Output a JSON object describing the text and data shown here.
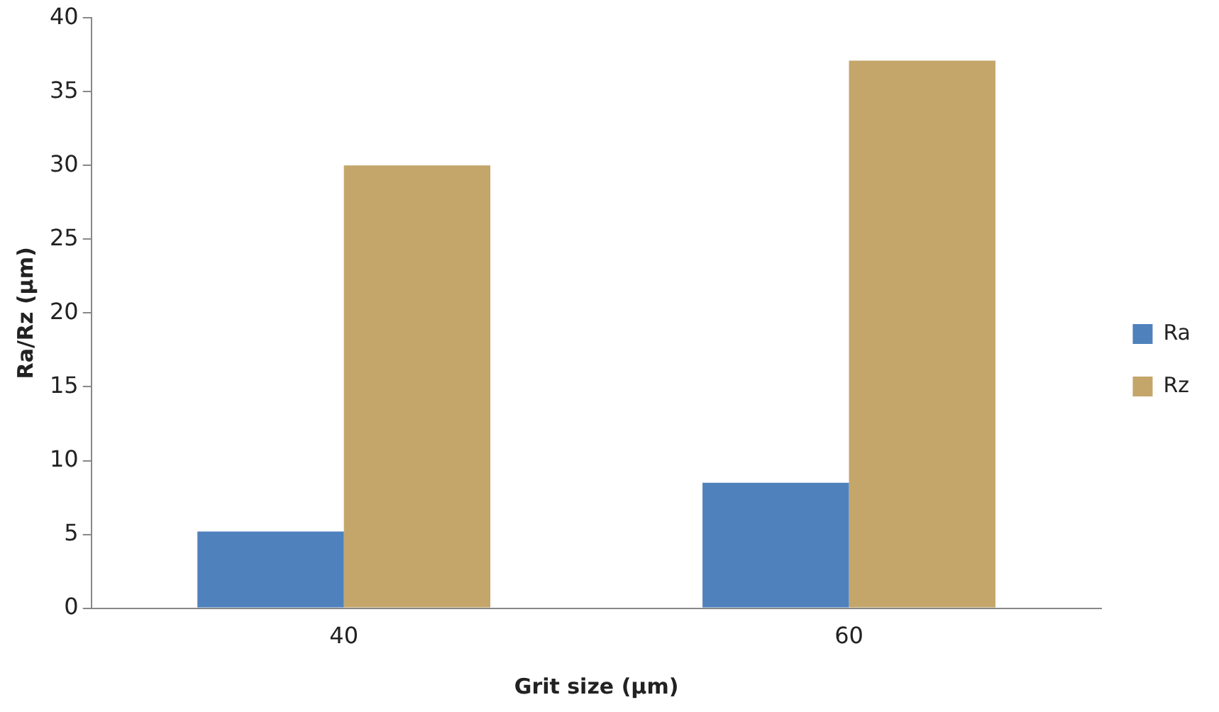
{
  "chart_data": {
    "type": "bar",
    "xlabel": "Grit size (µm)",
    "ylabel": "Ra/Rz (µm)",
    "categories": [
      "40",
      "60"
    ],
    "series": [
      {
        "name": "Ra",
        "color": "#4f81bd",
        "values": [
          5.2,
          8.5
        ]
      },
      {
        "name": "Rz",
        "color": "#c4a66a",
        "values": [
          30.0,
          37.1
        ]
      }
    ],
    "ylim": [
      0,
      40
    ],
    "yticks": [
      0,
      5,
      10,
      15,
      20,
      25,
      30,
      35,
      40
    ],
    "grid": false,
    "legend": "right"
  }
}
